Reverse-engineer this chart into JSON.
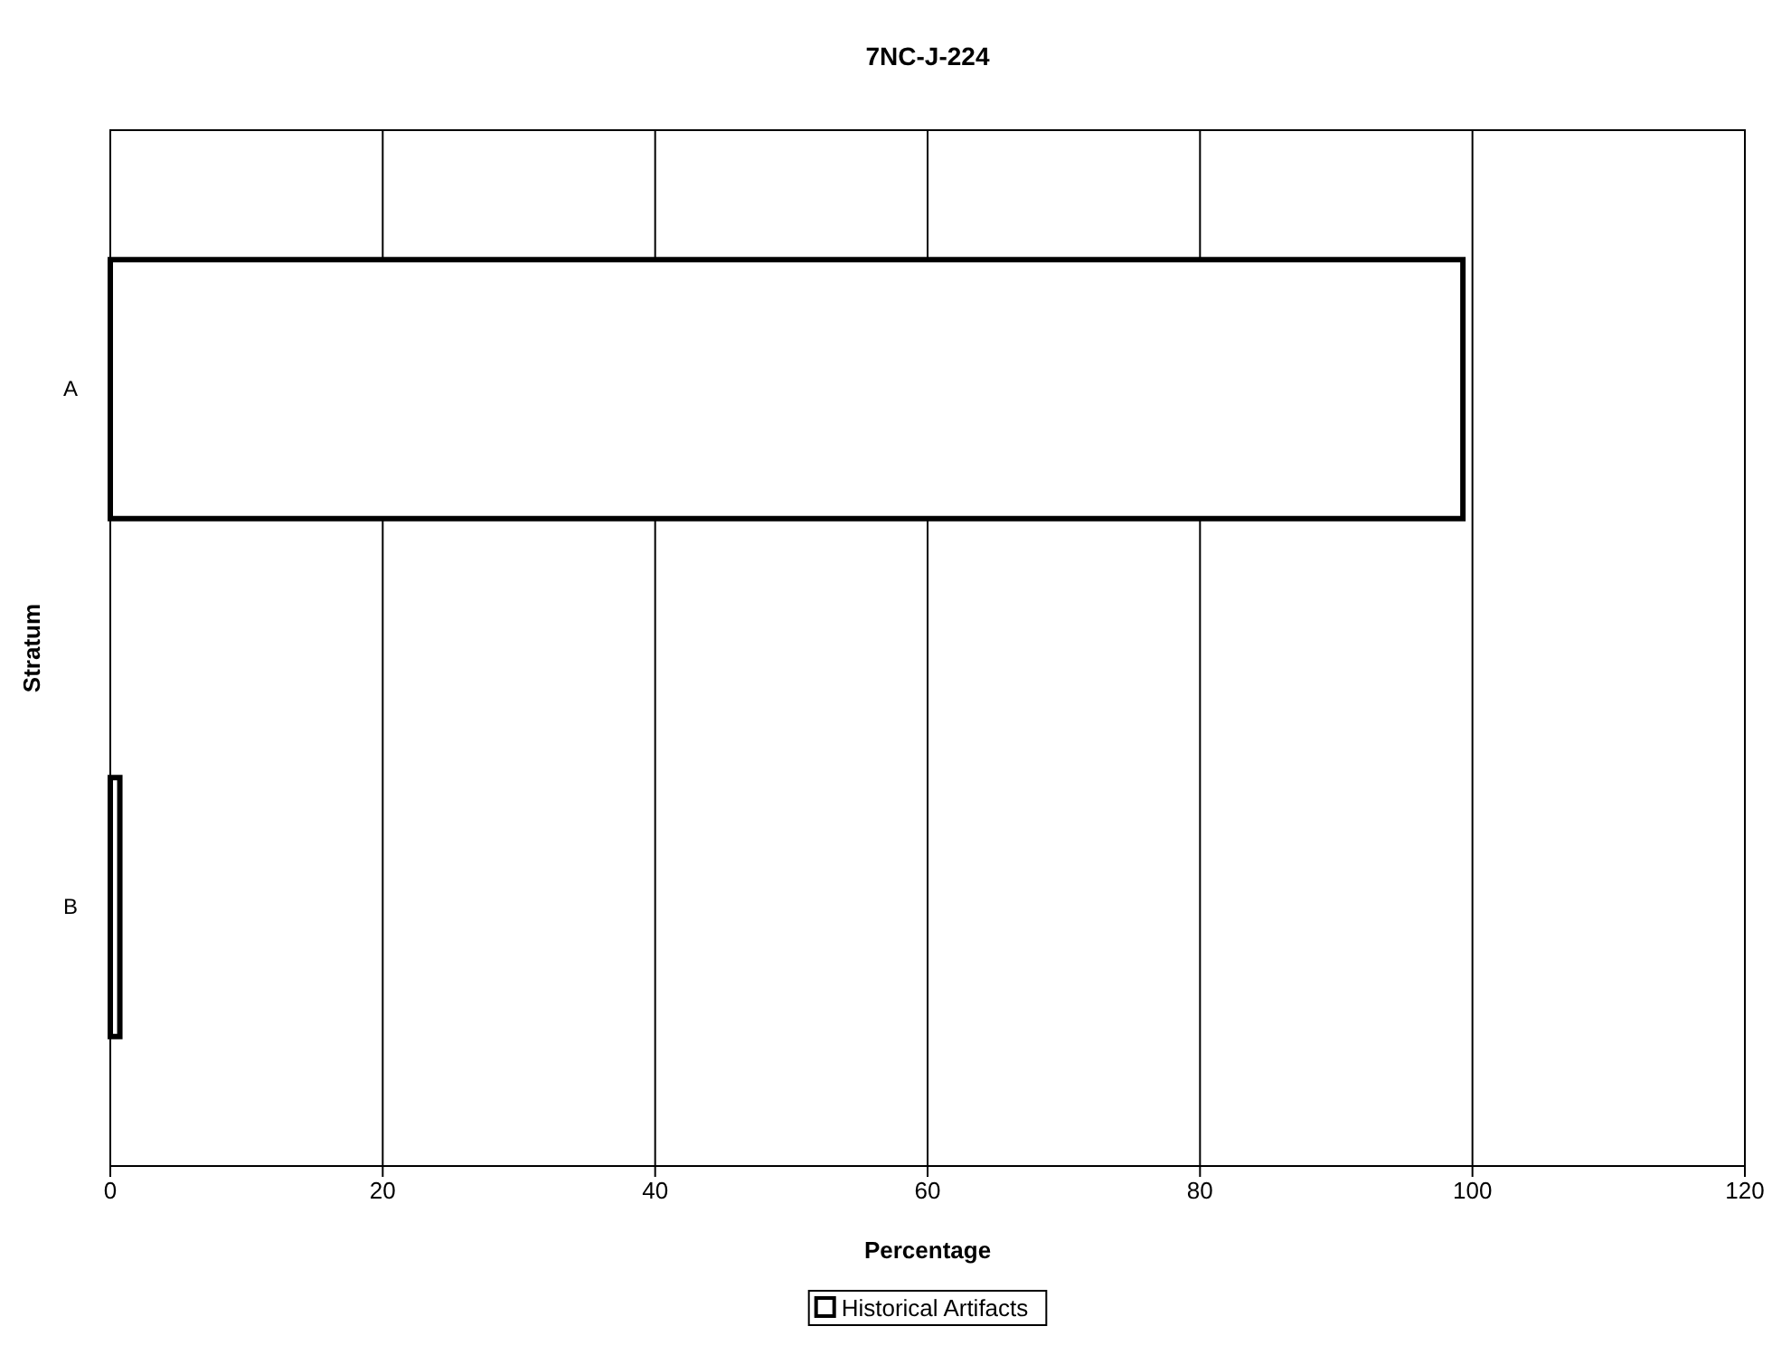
{
  "chart_data": {
    "type": "bar",
    "orientation": "horizontal",
    "title": "7NC-J-224",
    "xlabel": "Percentage",
    "ylabel": "Stratum",
    "categories": [
      "A",
      "B"
    ],
    "series": [
      {
        "name": "Historical Artifacts",
        "color": "#ffffff",
        "values": [
          99.3,
          0.7
        ]
      }
    ],
    "xlim": [
      0,
      120
    ],
    "xticks": [
      0,
      20,
      40,
      60,
      80,
      100,
      120
    ],
    "grid": "x",
    "legend": "bottom"
  }
}
